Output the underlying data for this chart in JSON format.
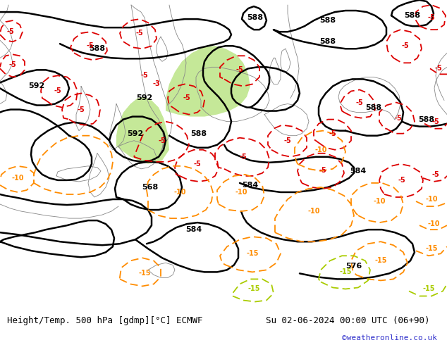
{
  "title_left": "Height/Temp. 500 hPa [gdmp][°C] ECMWF",
  "title_right": "Su 02-06-2024 00:00 UTC (06+90)",
  "watermark": "©weatheronline.co.uk",
  "map_bg": "#b5e085",
  "land_gray": "#d0d0d0",
  "sea_color": "#c0dca0",
  "coast_color": "#888888",
  "black_contour": "#000000",
  "red_contour": "#dd0000",
  "orange_contour": "#ff8c00",
  "yellow_green_contour": "#aacc00",
  "text_color": "#000000",
  "watermark_color": "#3333cc",
  "footer_bg": "#ffffff",
  "fig_width": 6.34,
  "fig_height": 4.9,
  "dpi": 100,
  "footer_fontsize": 9,
  "label_fontsize": 8
}
